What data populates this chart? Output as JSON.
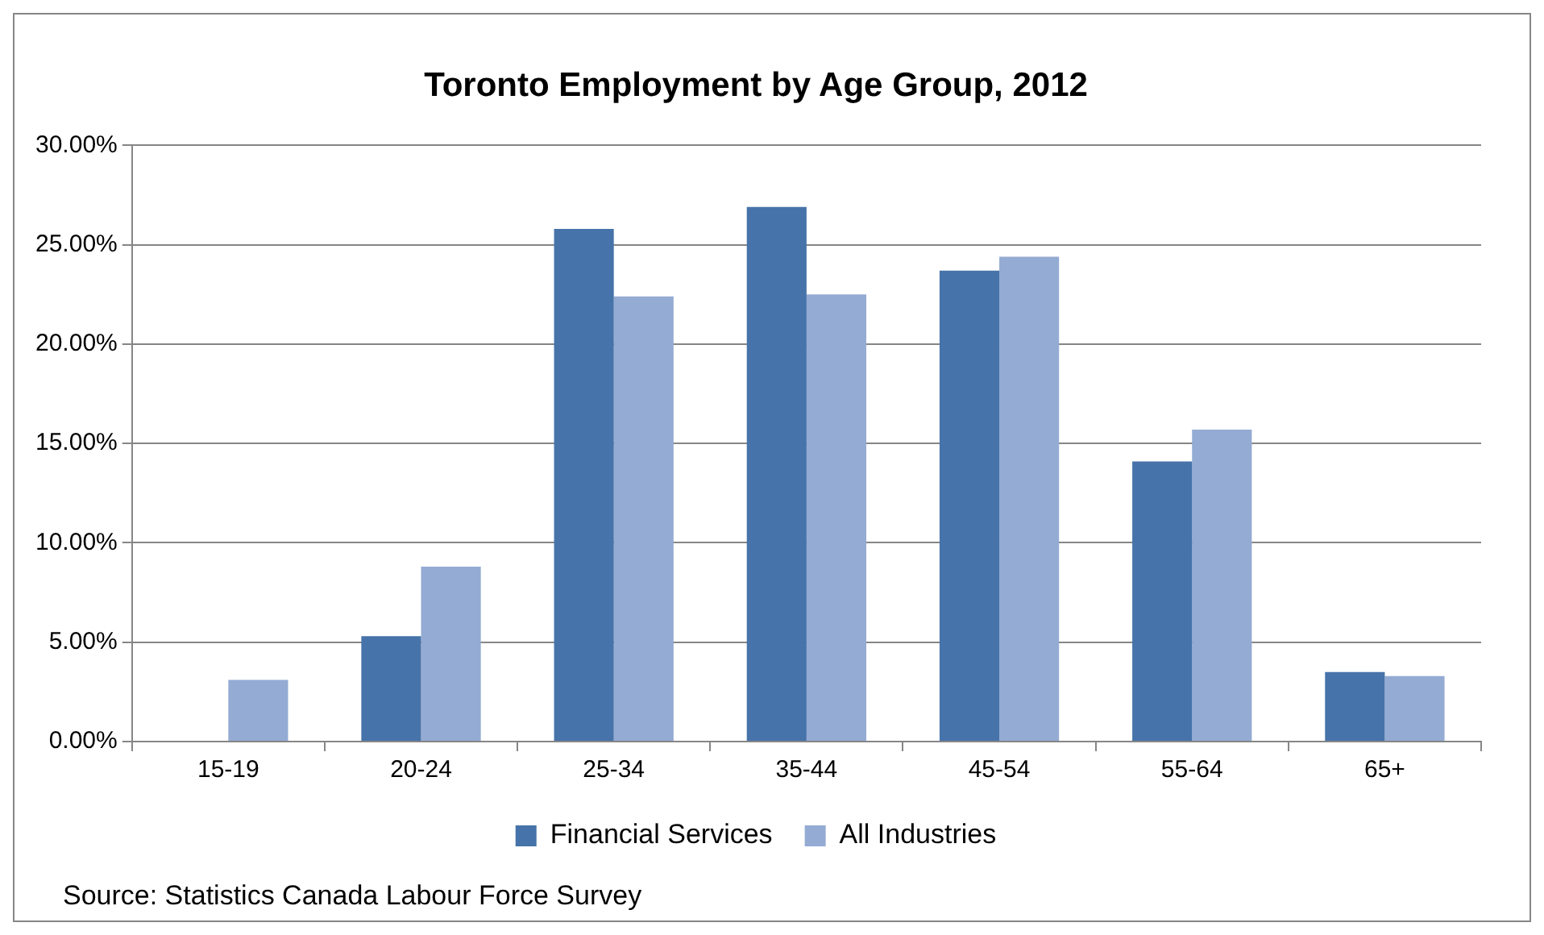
{
  "chart_data": {
    "type": "bar",
    "title": "Toronto Employment by Age Group, 2012",
    "categories": [
      "15-19",
      "20-24",
      "25-34",
      "35-44",
      "45-54",
      "55-64",
      "65+"
    ],
    "series": [
      {
        "name": "Financial Services",
        "color": "#4673a9",
        "values": [
          0,
          5.3,
          25.8,
          26.9,
          23.7,
          14.1,
          3.5
        ]
      },
      {
        "name": "All Industries",
        "color": "#94abd3",
        "values": [
          3.1,
          8.8,
          22.4,
          22.5,
          24.4,
          15.7,
          3.3
        ]
      }
    ],
    "ylim": [
      0,
      30
    ],
    "yticks": [
      {
        "value": 0,
        "label": "0.00%"
      },
      {
        "value": 5,
        "label": "5.00%"
      },
      {
        "value": 10,
        "label": "10.00%"
      },
      {
        "value": 15,
        "label": "15.00%"
      },
      {
        "value": 20,
        "label": "20.00%"
      },
      {
        "value": 25,
        "label": "25.00%"
      },
      {
        "value": 30,
        "label": "30.00%"
      }
    ],
    "grid": "y",
    "legend": "bottom",
    "annotations": [
      "Source: Statistics Canada Labour Force Survey"
    ]
  }
}
